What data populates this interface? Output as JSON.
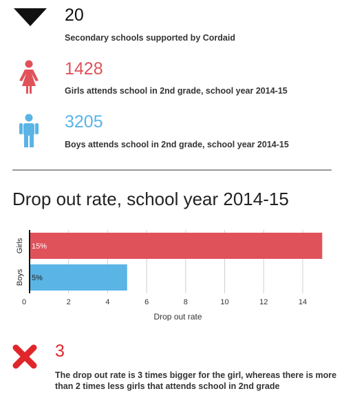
{
  "stats": [
    {
      "value": "20",
      "caption": "Secondary schools supported by Cordaid",
      "icon": "school-triangle-icon",
      "color": "#111111"
    },
    {
      "value": "1428",
      "caption": "Girls attends school in 2nd grade, school year 2014-15",
      "icon": "girl-icon",
      "color": "#e0525a"
    },
    {
      "value": "3205",
      "caption": "Boys attends school in 2nd grade, school year 2014-15",
      "icon": "boy-icon",
      "color": "#5ab4e5"
    }
  ],
  "chart_title": "Drop out rate, school year 2014-15",
  "chart_data": {
    "type": "bar",
    "orientation": "horizontal",
    "categories": [
      "Girls",
      "Boys"
    ],
    "values": [
      15,
      5
    ],
    "value_labels": [
      "15%",
      "5%"
    ],
    "colors": [
      "#e0525a",
      "#5ab4e5"
    ],
    "xlabel": "Drop out rate",
    "xlim": [
      0,
      15.2
    ],
    "xticks": [
      0,
      2,
      4,
      6,
      8,
      10,
      12,
      14
    ],
    "grid": true
  },
  "conclusion": {
    "icon": "x-mark-icon",
    "value": "3",
    "text": "The drop out rate is 3 times bigger for the girl, whereas there is more than 2 times less girls that attends school in 2nd grade"
  }
}
